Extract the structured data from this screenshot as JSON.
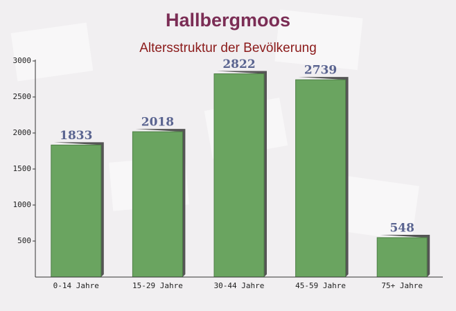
{
  "chart_data": {
    "type": "bar",
    "title": "Hallbergmoos",
    "subtitle": "Altersstruktur der Bevölkerung",
    "categories": [
      "0-14 Jahre",
      "15-29 Jahre",
      "30-44 Jahre",
      "45-59 Jahre",
      "75+ Jahre"
    ],
    "values": [
      1833,
      2018,
      2822,
      2739,
      548
    ],
    "color": "#6aa460",
    "ylim": [
      0,
      3000
    ],
    "yticks": [
      500,
      1000,
      1500,
      2000,
      2500,
      3000
    ],
    "grid": false
  }
}
